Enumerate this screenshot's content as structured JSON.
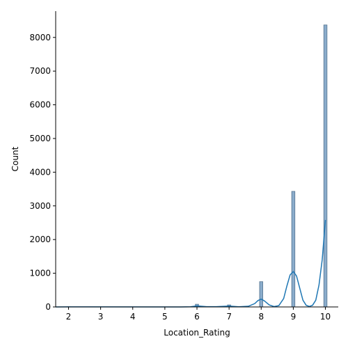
{
  "chart_data": {
    "type": "bar",
    "title": "",
    "xlabel": "Location_Rating",
    "ylabel": "Count",
    "xlim": [
      1.6,
      10.4
    ],
    "ylim": [
      0,
      8780
    ],
    "xticks": [
      2,
      3,
      4,
      5,
      6,
      7,
      8,
      9,
      10
    ],
    "yticks": [
      0,
      1000,
      2000,
      3000,
      4000,
      5000,
      6000,
      7000,
      8000
    ],
    "bins": [
      {
        "x": 2,
        "count": 5
      },
      {
        "x": 6,
        "count": 80
      },
      {
        "x": 7,
        "count": 60
      },
      {
        "x": 8,
        "count": 750
      },
      {
        "x": 9,
        "count": 3430
      },
      {
        "x": 10,
        "count": 8370
      }
    ],
    "bin_width": 0.1,
    "kde": [
      [
        1.6,
        0
      ],
      [
        2,
        2
      ],
      [
        5.5,
        1
      ],
      [
        5.8,
        5
      ],
      [
        6.0,
        30
      ],
      [
        6.3,
        8
      ],
      [
        6.6,
        8
      ],
      [
        7.0,
        25
      ],
      [
        7.3,
        5
      ],
      [
        7.6,
        20
      ],
      [
        7.8,
        100
      ],
      [
        7.9,
        190
      ],
      [
        8.0,
        230
      ],
      [
        8.1,
        180
      ],
      [
        8.25,
        60
      ],
      [
        8.4,
        10
      ],
      [
        8.55,
        40
      ],
      [
        8.7,
        250
      ],
      [
        8.8,
        620
      ],
      [
        8.9,
        950
      ],
      [
        9.0,
        1050
      ],
      [
        9.1,
        920
      ],
      [
        9.2,
        560
      ],
      [
        9.3,
        200
      ],
      [
        9.4,
        50
      ],
      [
        9.5,
        15
      ],
      [
        9.6,
        50
      ],
      [
        9.7,
        200
      ],
      [
        9.8,
        650
      ],
      [
        9.9,
        1400
      ],
      [
        10.0,
        2580
      ]
    ],
    "colors": {
      "bar_fill": "#8aaccb",
      "bar_edge": "#55738f",
      "kde_line": "#1f77b4",
      "axis": "#000000"
    },
    "grid": false,
    "legend": "none"
  }
}
